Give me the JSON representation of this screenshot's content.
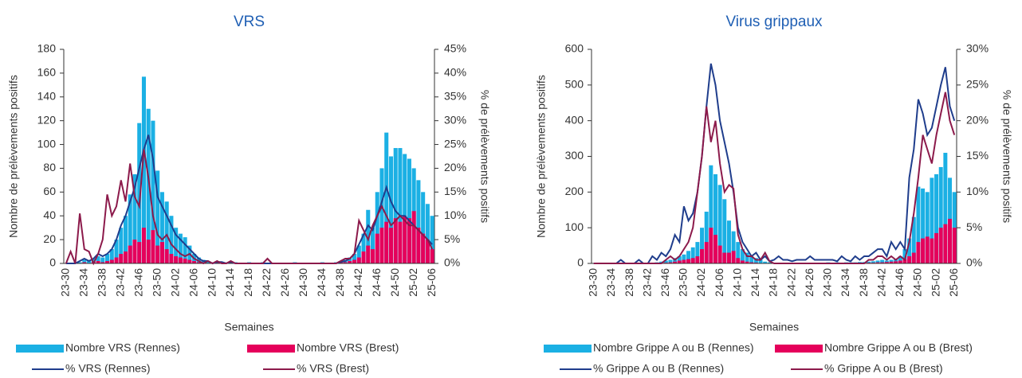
{
  "chart_data": [
    {
      "type": "bar",
      "title": "VRS",
      "xlabel": "Semaines",
      "ylabel": "Nombre de prélèvements positifs",
      "y2label": "% de prélèvements positifs",
      "categories": [
        "23-30",
        null,
        null,
        null,
        "23-34",
        null,
        null,
        null,
        "23-38",
        null,
        null,
        null,
        "23-42",
        null,
        null,
        null,
        "23-46",
        null,
        null,
        null,
        "23-50",
        null,
        null,
        null,
        "24-02",
        null,
        null,
        null,
        "24-06",
        null,
        null,
        null,
        "24-10",
        null,
        null,
        null,
        "24-14",
        null,
        null,
        null,
        "24-18",
        null,
        null,
        null,
        "24-22",
        null,
        null,
        null,
        "24-26",
        null,
        null,
        null,
        "24-30",
        null,
        null,
        null,
        "24-34",
        null,
        null,
        null,
        "24-38",
        null,
        null,
        null,
        "24-42",
        null,
        null,
        null,
        "24-46",
        null,
        null,
        null,
        "24-50",
        null,
        null,
        null,
        "25-02",
        null,
        null,
        null,
        "25-06"
      ],
      "ylim": [
        0,
        180
      ],
      "yticks": [
        0,
        20,
        40,
        60,
        80,
        100,
        120,
        140,
        160,
        180
      ],
      "y2lim": [
        0,
        45
      ],
      "y2ticks": [
        {
          "value": 0,
          "label": "0%"
        },
        {
          "value": 5,
          "label": "5%"
        },
        {
          "value": 10,
          "label": "10%"
        },
        {
          "value": 15,
          "label": "15%"
        },
        {
          "value": 20,
          "label": "20%"
        },
        {
          "value": 25,
          "label": "25%"
        },
        {
          "value": 30,
          "label": "30%"
        },
        {
          "value": 35,
          "label": "35%"
        },
        {
          "value": 40,
          "label": "40%"
        },
        {
          "value": 45,
          "label": "45%"
        }
      ],
      "series": [
        {
          "name": "Nombre VRS (Rennes)",
          "type": "bar",
          "color": "#1bb0e4",
          "values": [
            0,
            0,
            0,
            1,
            3,
            2,
            4,
            6,
            5,
            8,
            12,
            20,
            30,
            40,
            58,
            75,
            118,
            157,
            130,
            120,
            78,
            60,
            52,
            40,
            30,
            25,
            22,
            15,
            8,
            5,
            3,
            2,
            1,
            2,
            1,
            0,
            2,
            1,
            0,
            0,
            1,
            0,
            0,
            1,
            0,
            0,
            0,
            0,
            0,
            0,
            1,
            0,
            0,
            0,
            0,
            0,
            1,
            0,
            0,
            1,
            2,
            3,
            5,
            8,
            15,
            25,
            45,
            30,
            60,
            80,
            110,
            90,
            97,
            97,
            92,
            88,
            80,
            70,
            60,
            50,
            40
          ]
        },
        {
          "name": "Nombre VRS (Brest)",
          "type": "bar",
          "color": "#e5005b",
          "values": [
            0,
            0,
            0,
            0,
            1,
            0,
            1,
            2,
            1,
            2,
            3,
            5,
            8,
            10,
            15,
            20,
            18,
            30,
            20,
            28,
            15,
            18,
            12,
            8,
            6,
            5,
            4,
            3,
            2,
            1,
            1,
            0,
            0,
            1,
            0,
            0,
            1,
            0,
            0,
            0,
            0,
            0,
            0,
            0,
            0,
            0,
            0,
            0,
            0,
            0,
            0,
            0,
            0,
            0,
            0,
            0,
            0,
            0,
            0,
            0,
            1,
            1,
            2,
            3,
            5,
            10,
            15,
            12,
            25,
            30,
            35,
            30,
            38,
            35,
            40,
            38,
            44,
            30,
            25,
            20,
            12
          ]
        },
        {
          "name": "% VRS (Rennes)",
          "type": "line",
          "axis": "y2",
          "color": "#1f3d8c",
          "values": [
            0,
            0,
            0,
            0.5,
            1,
            0.5,
            1,
            2,
            1.5,
            2,
            3,
            5,
            8,
            10,
            13,
            16,
            20,
            24,
            27,
            22,
            14,
            12,
            10,
            8,
            6,
            5,
            4,
            3,
            2,
            1,
            0.5,
            0.5,
            0,
            0.3,
            0.3,
            0,
            0.3,
            0,
            0,
            0,
            0,
            0,
            0,
            0,
            0,
            0,
            0,
            0,
            0,
            0,
            0,
            0,
            0,
            0,
            0,
            0,
            0,
            0,
            0,
            0,
            0.3,
            0.5,
            1,
            2,
            4,
            6,
            8,
            7,
            10,
            13,
            16,
            13,
            11,
            10,
            10,
            9,
            8,
            7,
            6,
            5,
            4
          ]
        },
        {
          "name": "% VRS (Brest)",
          "type": "line",
          "axis": "y2",
          "color": "#8c1a4b",
          "values": [
            0,
            2.5,
            0,
            10.5,
            3,
            2.5,
            0,
            2,
            5,
            14.5,
            10,
            12,
            17.5,
            13,
            21,
            14,
            12,
            24,
            18,
            10,
            6,
            5,
            6,
            4,
            3,
            2,
            1.5,
            2,
            1,
            0.5,
            0,
            0.5,
            0,
            0.5,
            0,
            0,
            0.5,
            0,
            0,
            0,
            0,
            0,
            0,
            0,
            1,
            0,
            0,
            0,
            0,
            0,
            0,
            0,
            0,
            0,
            0,
            0,
            0,
            0,
            0,
            0,
            0.5,
            1,
            1,
            2,
            9,
            7,
            5,
            8,
            10,
            12,
            10,
            8,
            9,
            10,
            9,
            8,
            8,
            7,
            6,
            5,
            3
          ]
        }
      ]
    },
    {
      "type": "bar",
      "title": "Virus grippaux",
      "xlabel": "Semaines",
      "ylabel": "Nombre de prélèvements positifs",
      "y2label": "% de prélèvements positifs",
      "categories": [
        "23-30",
        null,
        null,
        null,
        "23-34",
        null,
        null,
        null,
        "23-38",
        null,
        null,
        null,
        "23-42",
        null,
        null,
        null,
        "23-46",
        null,
        null,
        null,
        "23-50",
        null,
        null,
        null,
        "24-02",
        null,
        null,
        null,
        "24-06",
        null,
        null,
        null,
        "24-10",
        null,
        null,
        null,
        "24-14",
        null,
        null,
        null,
        "24-18",
        null,
        null,
        null,
        "24-22",
        null,
        null,
        null,
        "24-26",
        null,
        null,
        null,
        "24-30",
        null,
        null,
        null,
        "24-34",
        null,
        null,
        null,
        "24-38",
        null,
        null,
        null,
        "24-42",
        null,
        null,
        null,
        "24-46",
        null,
        null,
        null,
        "24-50",
        null,
        null,
        null,
        "25-02",
        null,
        null,
        null,
        "25-06"
      ],
      "ylim": [
        0,
        600
      ],
      "yticks": [
        0,
        100,
        200,
        300,
        400,
        500,
        600
      ],
      "y2lim": [
        0,
        30
      ],
      "y2ticks": [
        {
          "value": 0,
          "label": "0%"
        },
        {
          "value": 5,
          "label": "5%"
        },
        {
          "value": 10,
          "label": "10%"
        },
        {
          "value": 15,
          "label": "15%"
        },
        {
          "value": 20,
          "label": "20%"
        },
        {
          "value": 25,
          "label": "25%"
        },
        {
          "value": 30,
          "label": "30%"
        }
      ],
      "series": [
        {
          "name": "Nombre Grippe A ou B (Rennes)",
          "type": "bar",
          "color": "#1bb0e4",
          "values": [
            0,
            0,
            0,
            0,
            0,
            0,
            0,
            0,
            0,
            0,
            0,
            0,
            1,
            2,
            3,
            5,
            8,
            10,
            15,
            20,
            25,
            35,
            45,
            60,
            100,
            145,
            275,
            250,
            220,
            180,
            120,
            90,
            60,
            40,
            30,
            20,
            15,
            10,
            5,
            3,
            2,
            2,
            1,
            1,
            2,
            1,
            1,
            1,
            2,
            1,
            2,
            2,
            3,
            2,
            3,
            2,
            3,
            3,
            3,
            4,
            4,
            5,
            6,
            8,
            10,
            8,
            10,
            12,
            20,
            40,
            70,
            130,
            215,
            210,
            200,
            240,
            250,
            270,
            310,
            240,
            200
          ]
        },
        {
          "name": "Nombre Grippe A ou B (Brest)",
          "type": "bar",
          "color": "#e5005b",
          "values": [
            0,
            0,
            0,
            0,
            0,
            0,
            0,
            0,
            0,
            0,
            0,
            0,
            0,
            0,
            1,
            2,
            2,
            3,
            5,
            8,
            10,
            12,
            15,
            20,
            40,
            60,
            100,
            80,
            50,
            30,
            30,
            35,
            15,
            8,
            5,
            3,
            2,
            1,
            1,
            0,
            0,
            0,
            0,
            0,
            0,
            0,
            0,
            0,
            0,
            0,
            0,
            0,
            0,
            0,
            1,
            0,
            1,
            1,
            1,
            1,
            1,
            2,
            2,
            3,
            3,
            4,
            5,
            6,
            8,
            12,
            20,
            30,
            60,
            70,
            75,
            70,
            85,
            100,
            110,
            125,
            100
          ]
        },
        {
          "name": "% Grippe A ou B (Rennes)",
          "type": "line",
          "axis": "y2",
          "color": "#1f3d8c",
          "values": [
            0,
            0,
            0,
            0,
            0,
            0,
            0.5,
            0,
            0,
            0,
            0.5,
            0,
            0,
            1,
            0.5,
            1.5,
            1,
            2,
            4,
            3,
            8,
            6,
            7,
            10,
            15,
            22,
            28,
            25,
            20,
            17,
            14,
            10,
            5,
            3,
            2,
            1,
            1.5,
            0.5,
            1,
            0.3,
            0.5,
            1,
            0.5,
            0.5,
            0.3,
            0.5,
            0.5,
            0.5,
            1,
            0.5,
            0.5,
            0.5,
            0.5,
            0.5,
            0.3,
            1,
            0.5,
            0.3,
            1,
            0.5,
            1,
            1,
            1.5,
            2,
            2,
            1,
            3,
            2,
            3,
            2,
            12,
            16,
            23,
            21,
            18,
            19,
            22,
            25,
            27.5,
            22,
            20
          ]
        },
        {
          "name": "% Grippe A ou B (Brest)",
          "type": "line",
          "axis": "y2",
          "color": "#8c1a4b",
          "values": [
            0,
            0,
            0,
            0,
            0,
            0,
            0,
            0,
            0,
            0,
            0,
            0,
            0,
            0,
            0,
            0,
            0.5,
            1,
            0.5,
            1,
            2,
            3,
            5,
            10,
            15,
            22,
            17,
            20,
            14,
            10,
            11,
            10.5,
            4,
            2,
            1,
            1,
            0.5,
            0.5,
            1.5,
            0.3,
            0,
            0,
            0,
            0,
            0,
            0,
            0,
            0,
            0,
            0,
            0,
            0,
            0,
            0,
            0,
            0,
            0,
            0,
            0,
            0,
            0,
            0.5,
            0.5,
            1,
            1,
            0.5,
            1,
            0.5,
            1,
            0.5,
            3,
            7,
            12,
            18,
            16,
            14,
            18,
            21,
            24,
            20,
            18
          ]
        }
      ]
    }
  ]
}
